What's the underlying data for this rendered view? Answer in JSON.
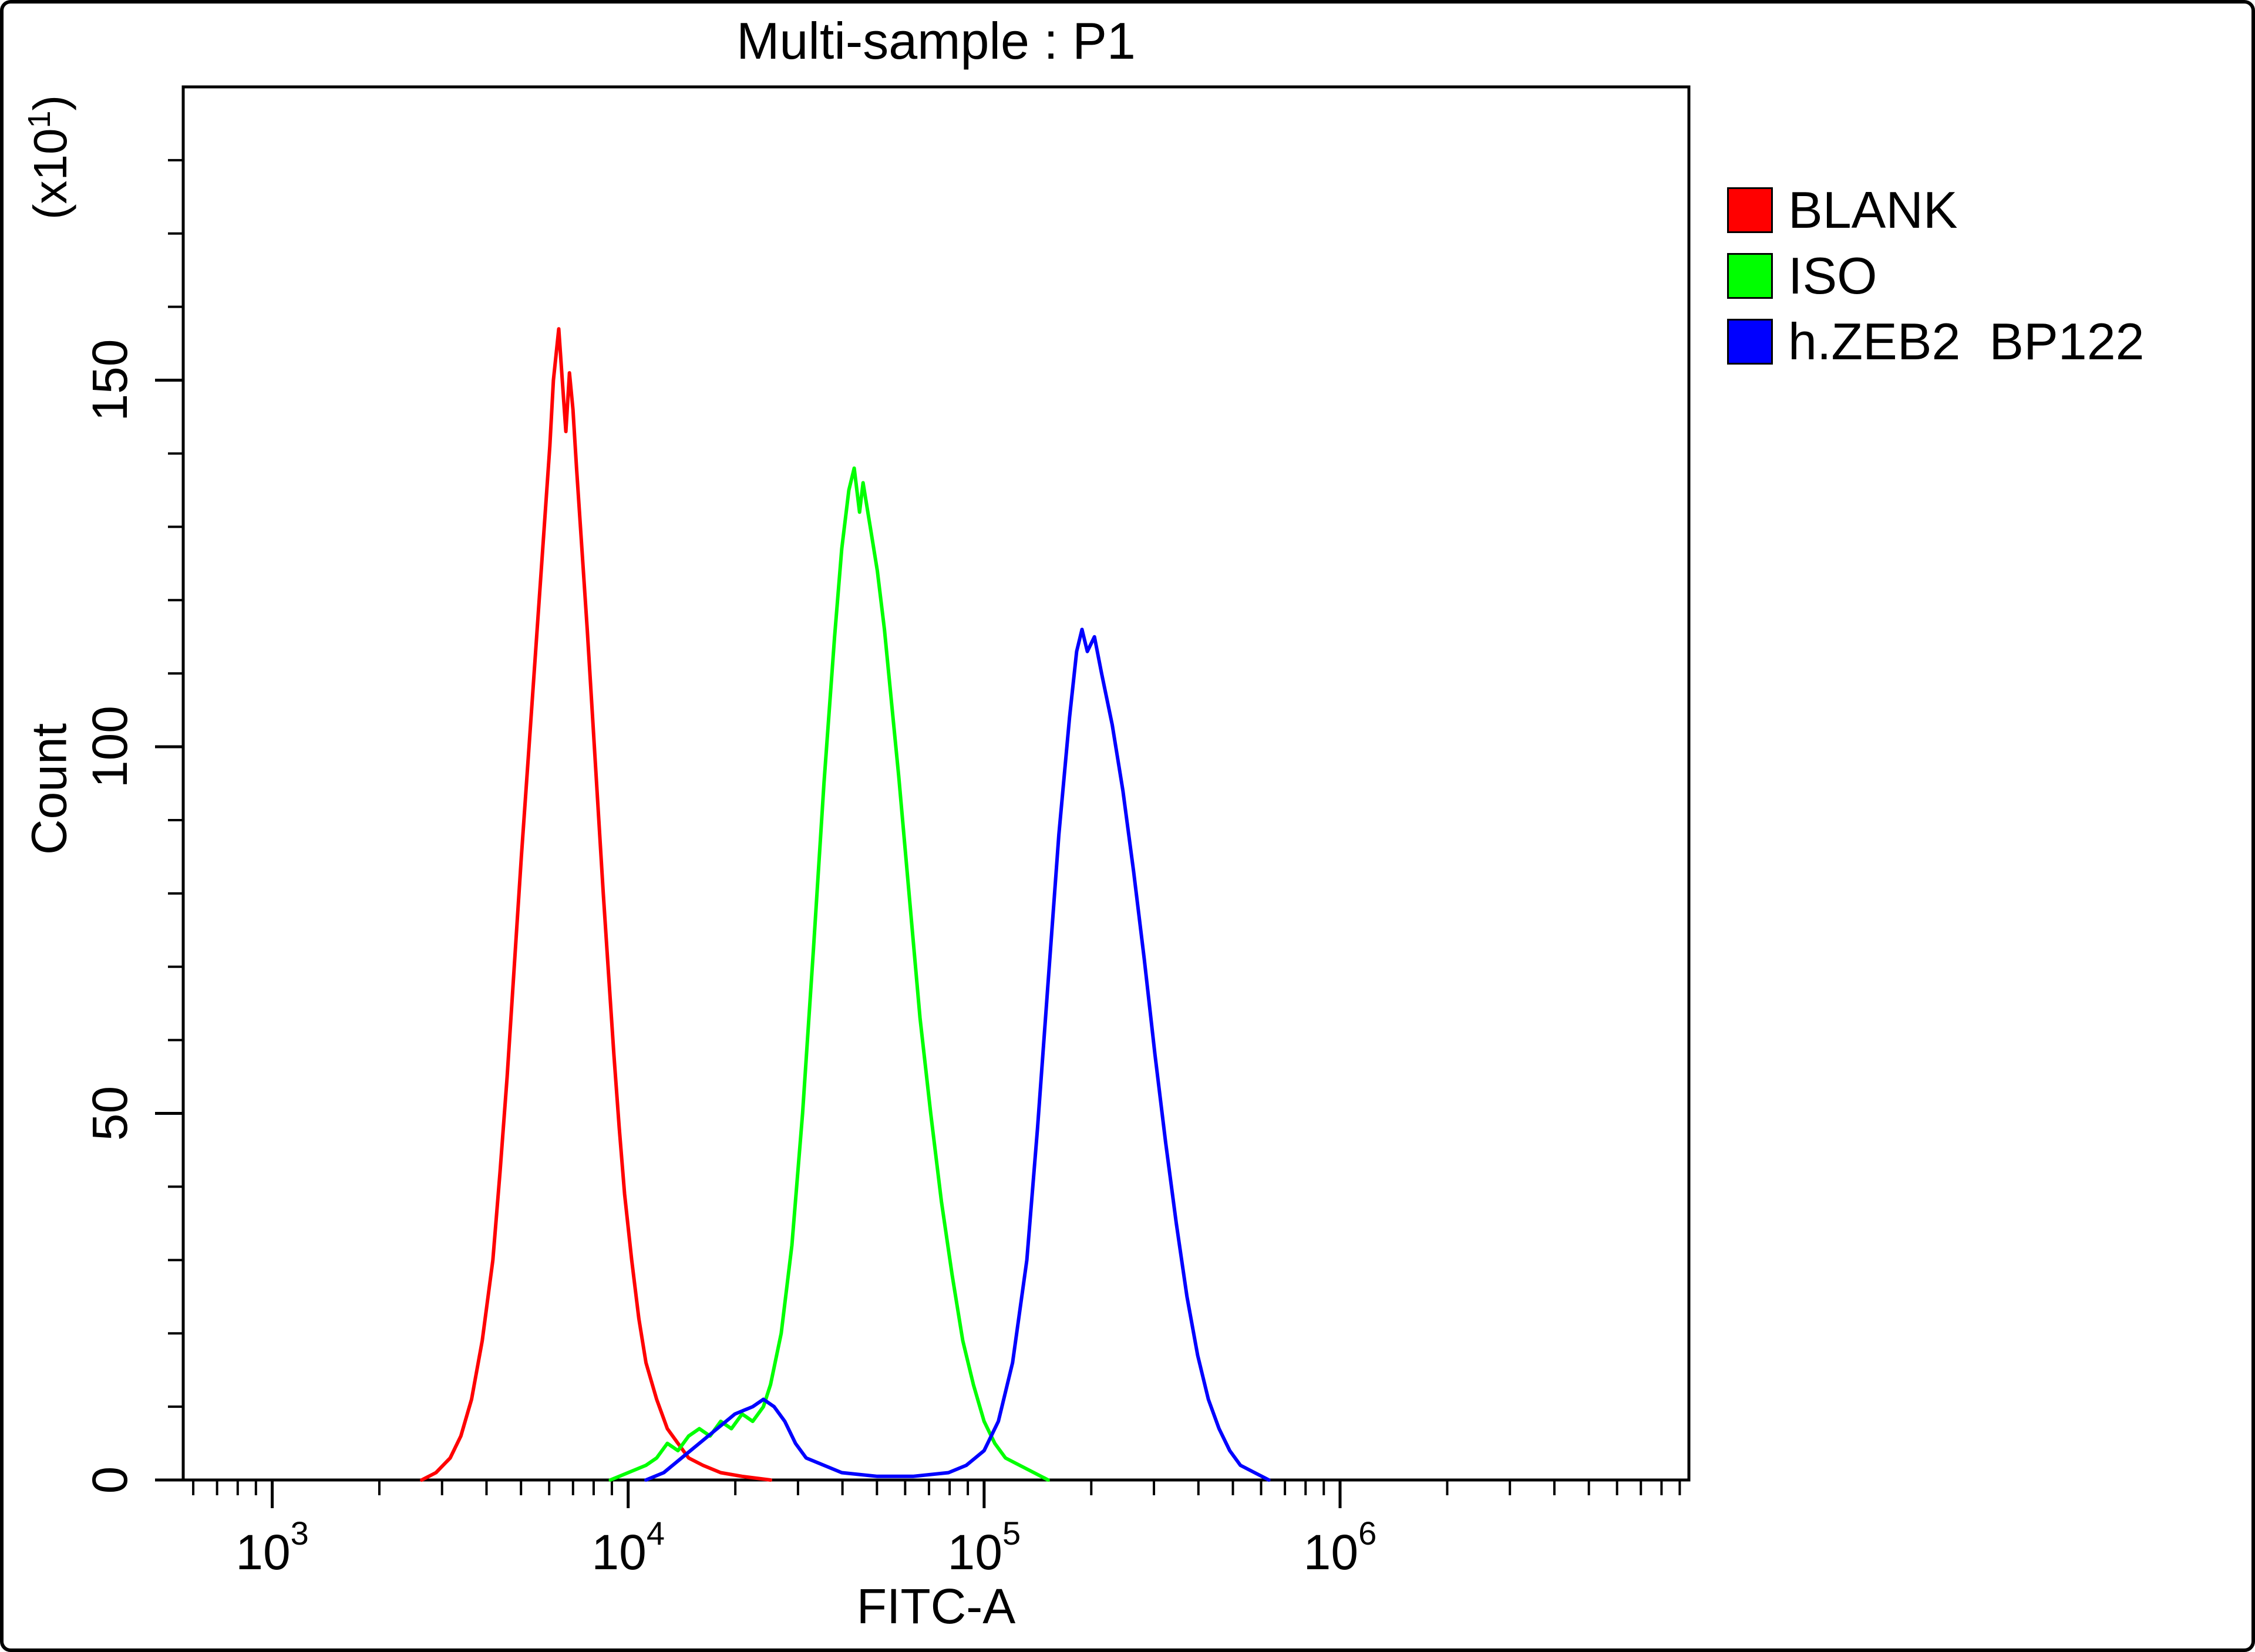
{
  "title": "Multi-sample : P1",
  "axes": {
    "x": {
      "label": "FITC-A",
      "scale": "log",
      "tick_base": "10",
      "major_exponents": [
        3,
        4,
        5,
        6
      ]
    },
    "y": {
      "label": "Count",
      "multiplier": {
        "base": "(x10",
        "exp": "1",
        "close": ")"
      },
      "major_ticks": [
        0,
        50,
        100,
        150
      ],
      "minor_step": 10
    }
  },
  "chart_data": {
    "type": "line",
    "title": "Multi-sample : P1",
    "xlabel": "FITC-A",
    "ylabel": "Count (x10^1)",
    "x_scale": "log10",
    "xlim_log10": [
      2.75,
      6.98
    ],
    "ylim": [
      0,
      190
    ],
    "grid": false,
    "legend_position": "right-outside",
    "series": [
      {
        "name": "BLANK",
        "key": "blank",
        "color": "#ff0000",
        "peak_x": 6400,
        "peak_count": 157,
        "points": [
          [
            3.42,
            0
          ],
          [
            3.46,
            1
          ],
          [
            3.5,
            3
          ],
          [
            3.53,
            6
          ],
          [
            3.56,
            11
          ],
          [
            3.59,
            19
          ],
          [
            3.62,
            30
          ],
          [
            3.64,
            42
          ],
          [
            3.66,
            55
          ],
          [
            3.68,
            70
          ],
          [
            3.7,
            85
          ],
          [
            3.72,
            99
          ],
          [
            3.74,
            113
          ],
          [
            3.76,
            127
          ],
          [
            3.78,
            141
          ],
          [
            3.79,
            150
          ],
          [
            3.805,
            157
          ],
          [
            3.815,
            150
          ],
          [
            3.825,
            143
          ],
          [
            3.835,
            151
          ],
          [
            3.845,
            146
          ],
          [
            3.855,
            138
          ],
          [
            3.87,
            127
          ],
          [
            3.885,
            116
          ],
          [
            3.9,
            104
          ],
          [
            3.915,
            92
          ],
          [
            3.93,
            80
          ],
          [
            3.945,
            69
          ],
          [
            3.96,
            58
          ],
          [
            3.975,
            48
          ],
          [
            3.99,
            39
          ],
          [
            4.01,
            30
          ],
          [
            4.03,
            22
          ],
          [
            4.05,
            16
          ],
          [
            4.08,
            11
          ],
          [
            4.11,
            7
          ],
          [
            4.14,
            5
          ],
          [
            4.17,
            3
          ],
          [
            4.21,
            2
          ],
          [
            4.26,
            1
          ],
          [
            4.32,
            0.5
          ],
          [
            4.4,
            0
          ]
        ]
      },
      {
        "name": "ISO",
        "key": "iso",
        "color": "#00ff00",
        "peak_x": 43000,
        "peak_count": 138,
        "points": [
          [
            3.95,
            0
          ],
          [
            4.0,
            1
          ],
          [
            4.05,
            2
          ],
          [
            4.08,
            3
          ],
          [
            4.11,
            5
          ],
          [
            4.14,
            4
          ],
          [
            4.17,
            6
          ],
          [
            4.2,
            7
          ],
          [
            4.23,
            6
          ],
          [
            4.26,
            8
          ],
          [
            4.29,
            7
          ],
          [
            4.32,
            9
          ],
          [
            4.35,
            8
          ],
          [
            4.38,
            10
          ],
          [
            4.4,
            13
          ],
          [
            4.43,
            20
          ],
          [
            4.46,
            32
          ],
          [
            4.49,
            50
          ],
          [
            4.52,
            72
          ],
          [
            4.55,
            95
          ],
          [
            4.58,
            115
          ],
          [
            4.6,
            127
          ],
          [
            4.62,
            135
          ],
          [
            4.635,
            138
          ],
          [
            4.65,
            132
          ],
          [
            4.66,
            136
          ],
          [
            4.68,
            130
          ],
          [
            4.7,
            124
          ],
          [
            4.72,
            116
          ],
          [
            4.74,
            106
          ],
          [
            4.76,
            96
          ],
          [
            4.78,
            85
          ],
          [
            4.8,
            74
          ],
          [
            4.82,
            63
          ],
          [
            4.85,
            50
          ],
          [
            4.88,
            38
          ],
          [
            4.91,
            28
          ],
          [
            4.94,
            19
          ],
          [
            4.97,
            13
          ],
          [
            5.0,
            8
          ],
          [
            5.03,
            5
          ],
          [
            5.06,
            3
          ],
          [
            5.1,
            2
          ],
          [
            5.14,
            1
          ],
          [
            5.18,
            0
          ]
        ]
      },
      {
        "name": "h.ZEB2  BP122",
        "key": "h-zeb2-bp122",
        "color": "#0000ff",
        "peak_x": 188000,
        "peak_count": 116,
        "points": [
          [
            4.05,
            0
          ],
          [
            4.1,
            1
          ],
          [
            4.15,
            3
          ],
          [
            4.2,
            5
          ],
          [
            4.25,
            7
          ],
          [
            4.3,
            9
          ],
          [
            4.35,
            10
          ],
          [
            4.38,
            11
          ],
          [
            4.41,
            10
          ],
          [
            4.44,
            8
          ],
          [
            4.47,
            5
          ],
          [
            4.5,
            3
          ],
          [
            4.55,
            2
          ],
          [
            4.6,
            1
          ],
          [
            4.7,
            0.5
          ],
          [
            4.8,
            0.5
          ],
          [
            4.9,
            1
          ],
          [
            4.95,
            2
          ],
          [
            5.0,
            4
          ],
          [
            5.04,
            8
          ],
          [
            5.08,
            16
          ],
          [
            5.12,
            30
          ],
          [
            5.15,
            48
          ],
          [
            5.18,
            68
          ],
          [
            5.21,
            88
          ],
          [
            5.24,
            104
          ],
          [
            5.26,
            113
          ],
          [
            5.275,
            116
          ],
          [
            5.29,
            113
          ],
          [
            5.31,
            115
          ],
          [
            5.33,
            110
          ],
          [
            5.36,
            103
          ],
          [
            5.39,
            94
          ],
          [
            5.42,
            83
          ],
          [
            5.45,
            71
          ],
          [
            5.48,
            58
          ],
          [
            5.51,
            46
          ],
          [
            5.54,
            35
          ],
          [
            5.57,
            25
          ],
          [
            5.6,
            17
          ],
          [
            5.63,
            11
          ],
          [
            5.66,
            7
          ],
          [
            5.69,
            4
          ],
          [
            5.72,
            2
          ],
          [
            5.76,
            1
          ],
          [
            5.8,
            0
          ]
        ]
      }
    ]
  }
}
